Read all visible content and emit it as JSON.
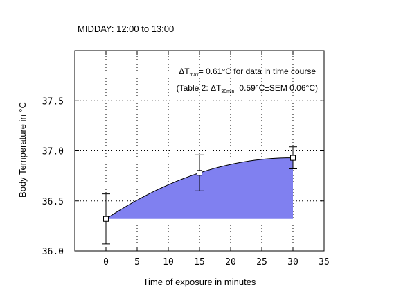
{
  "chart_data": {
    "type": "area",
    "title": "MIDDAY: 12:00 to 13:00",
    "xlabel": "Time of exposure in minutes",
    "ylabel": "Body Temperature in °C",
    "xlim": [
      -5,
      35
    ],
    "ylim": [
      36.0,
      38.0
    ],
    "x_ticks": [
      0,
      5,
      10,
      15,
      20,
      25,
      30,
      35
    ],
    "x_tick_labels": [
      "0",
      "5",
      "10",
      "15",
      "20",
      "25",
      "30",
      "35"
    ],
    "y_ticks": [
      36.0,
      36.5,
      37.0,
      37.5
    ],
    "y_tick_labels": [
      "36.0",
      "36.5",
      "37.0",
      "37.5"
    ],
    "grid": true,
    "series": [
      {
        "x": [
          0,
          15,
          30
        ],
        "y": [
          36.32,
          36.78,
          36.93
        ],
        "error": [
          0.25,
          0.18,
          0.11
        ],
        "fill_color": "#8080f0",
        "fill_baseline": 36.32
      }
    ],
    "annotations": {
      "line1": {
        "delta": "ΔT",
        "sub": "max",
        "rest": "= 0.61°C for data in time course"
      },
      "line2": {
        "pre": "(Table 2: ΔT",
        "sub": "30min",
        "rest": "=0.59°C±SEM 0.06°C)"
      }
    }
  }
}
